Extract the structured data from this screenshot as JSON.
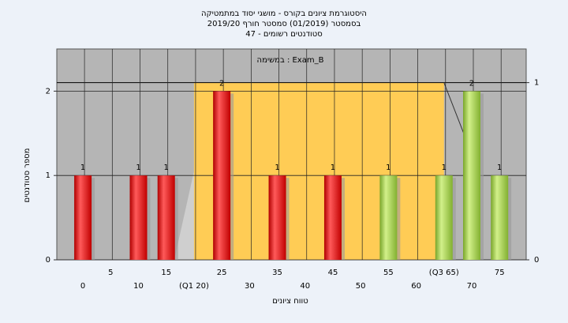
{
  "chart_data": {
    "type": "bar",
    "title": "היסטוגרמת ציונים בקורס - מושגי יסוד במתמטיקה",
    "subtitle": "בסמסטר  (01/2019)  סמסטר חורף 2019/20",
    "subtitle2": "סטודנטים רשומים - 47",
    "annotation": "במשימה : Exam_B",
    "xlabel": "טווח ציונים",
    "ylabel": "מספר סטודנטים",
    "x": [
      0,
      10,
      15,
      25,
      35,
      45,
      55,
      65,
      70,
      75
    ],
    "values": [
      1,
      1,
      1,
      2,
      1,
      1,
      1,
      1,
      2,
      1
    ],
    "colors": [
      "red",
      "red",
      "red",
      "red",
      "red",
      "red",
      "green",
      "green",
      "green",
      "green"
    ],
    "xlim": [
      -4.7,
      79.8
    ],
    "xticks": [
      0,
      5,
      10,
      15,
      {
        "value": 20,
        "label": "(Q1 20)"
      },
      25,
      30,
      35,
      40,
      45,
      50,
      55,
      60,
      {
        "value": 65,
        "label": "(Q3 65)"
      },
      70,
      75
    ],
    "ylim": [
      0,
      2.5
    ],
    "yticks": [
      0,
      1,
      2
    ],
    "y2lim": [
      0,
      1.19
    ],
    "y2ticks": [
      0,
      1
    ],
    "grid": true
  }
}
